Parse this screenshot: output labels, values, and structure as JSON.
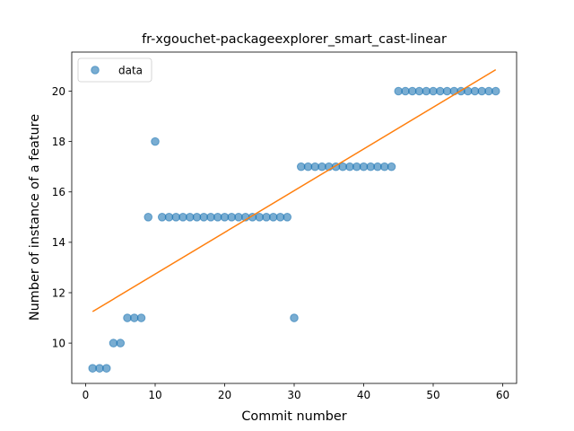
{
  "chart_data": {
    "type": "scatter",
    "title": "fr-xgouchet-packageexplorer_smart_cast-linear",
    "xlabel": "Commit number",
    "ylabel": "Number of instance of a feature",
    "xlim": [
      -2,
      62
    ],
    "ylim": [
      8.4,
      21.55
    ],
    "xticks": [
      0,
      10,
      20,
      30,
      40,
      50,
      60
    ],
    "yticks": [
      10,
      12,
      14,
      16,
      18,
      20
    ],
    "legend": {
      "position": "top-left",
      "label": "data"
    },
    "colors": {
      "points": "#1f77b4",
      "fit": "#ff7f0e"
    },
    "series": [
      {
        "name": "data",
        "x": [
          1,
          2,
          3,
          4,
          5,
          6,
          7,
          8,
          9,
          10,
          11,
          12,
          13,
          14,
          15,
          16,
          17,
          18,
          19,
          20,
          21,
          22,
          23,
          24,
          25,
          26,
          27,
          28,
          29,
          30,
          31,
          32,
          33,
          34,
          35,
          36,
          37,
          38,
          39,
          40,
          41,
          42,
          43,
          44,
          45,
          46,
          47,
          48,
          49,
          50,
          51,
          52,
          53,
          54,
          55,
          56,
          57,
          58,
          59
        ],
        "y": [
          9,
          9,
          9,
          10,
          10,
          11,
          11,
          11,
          15,
          18,
          15,
          15,
          15,
          15,
          15,
          15,
          15,
          15,
          15,
          15,
          15,
          15,
          15,
          15,
          15,
          15,
          15,
          15,
          15,
          11,
          17,
          17,
          17,
          17,
          17,
          17,
          17,
          17,
          17,
          17,
          17,
          17,
          17,
          17,
          20,
          20,
          20,
          20,
          20,
          20,
          20,
          20,
          20,
          20,
          20,
          20,
          20,
          20,
          20
        ]
      }
    ],
    "fit_line": {
      "x": [
        1,
        59
      ],
      "y": [
        11.25,
        20.85
      ]
    }
  }
}
